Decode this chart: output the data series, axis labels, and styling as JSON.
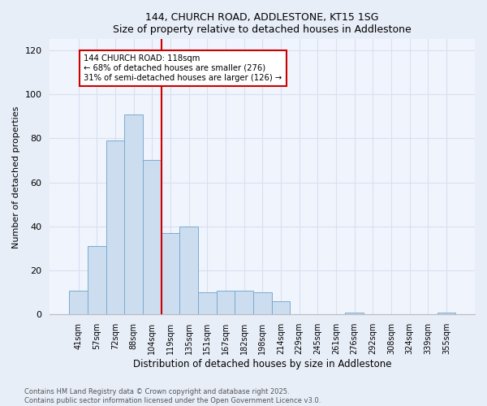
{
  "title1": "144, CHURCH ROAD, ADDLESTONE, KT15 1SG",
  "title2": "Size of property relative to detached houses in Addlestone",
  "xlabel": "Distribution of detached houses by size in Addlestone",
  "ylabel": "Number of detached properties",
  "categories": [
    "41sqm",
    "57sqm",
    "72sqm",
    "88sqm",
    "104sqm",
    "119sqm",
    "135sqm",
    "151sqm",
    "167sqm",
    "182sqm",
    "198sqm",
    "214sqm",
    "229sqm",
    "245sqm",
    "261sqm",
    "276sqm",
    "292sqm",
    "308sqm",
    "324sqm",
    "339sqm",
    "355sqm"
  ],
  "values": [
    11,
    31,
    79,
    91,
    70,
    37,
    40,
    10,
    11,
    11,
    10,
    6,
    0,
    0,
    0,
    1,
    0,
    0,
    0,
    0,
    1
  ],
  "bar_color": "#ccddf0",
  "bar_edge_color": "#7aabcf",
  "vline_x_idx": 4.5,
  "vline_color": "#cc0000",
  "annotation_text": "144 CHURCH ROAD: 118sqm\n← 68% of detached houses are smaller (276)\n31% of semi-detached houses are larger (126) →",
  "annotation_box_color": "#ffffff",
  "annotation_box_edge": "#cc0000",
  "ylim": [
    0,
    125
  ],
  "yticks": [
    0,
    20,
    40,
    60,
    80,
    100,
    120
  ],
  "footnote1": "Contains HM Land Registry data © Crown copyright and database right 2025.",
  "footnote2": "Contains public sector information licensed under the Open Government Licence v3.0.",
  "bg_color": "#e8eef8",
  "plot_bg_color": "#f0f4fc",
  "grid_color": "#d8e0f0"
}
